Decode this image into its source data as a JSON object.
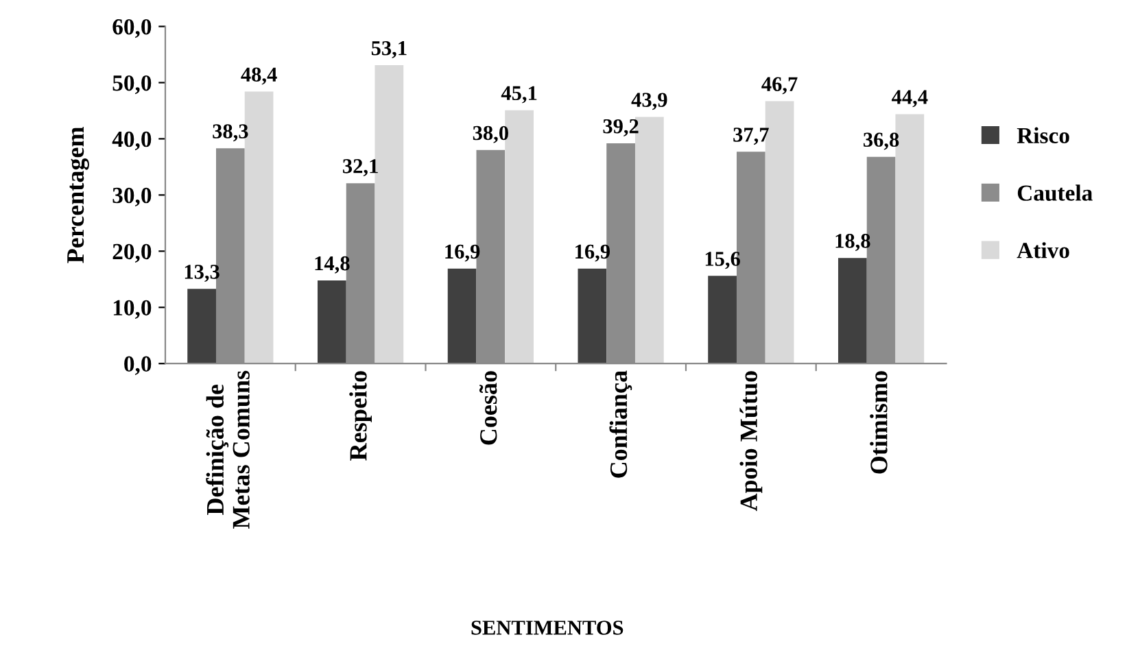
{
  "chart_data": {
    "type": "bar",
    "categories": [
      "Definição de\nMetas Comuns",
      "Respeito",
      "Coesão",
      "Confiança",
      "Apoio Mútuo",
      "Otimismo"
    ],
    "xlabel": "SENTIMENTOS",
    "ylabel": "Percentagem",
    "series": [
      {
        "name": "Risco",
        "color": "#404040",
        "values": [
          13.3,
          14.8,
          16.9,
          16.9,
          15.6,
          18.8
        ],
        "value_labels": [
          "13,3",
          "14,8",
          "16,9",
          "16,9",
          "15,6",
          "18,8"
        ]
      },
      {
        "name": "Cautela",
        "color": "#8c8c8c",
        "values": [
          38.3,
          32.1,
          38.0,
          39.2,
          37.7,
          36.8
        ],
        "value_labels": [
          "38,3",
          "32,1",
          "38,0",
          "39,2",
          "37,7",
          "36,8"
        ]
      },
      {
        "name": "Ativo",
        "color": "#d9d9d9",
        "values": [
          48.4,
          53.1,
          45.1,
          43.9,
          46.7,
          44.4
        ],
        "value_labels": [
          "48,4",
          "53,1",
          "45,1",
          "43,9",
          "46,7",
          "44,4"
        ]
      }
    ],
    "ylim": [
      0,
      60
    ],
    "yticks": [
      {
        "value": 0,
        "label": "0,0"
      },
      {
        "value": 10,
        "label": "10,0"
      },
      {
        "value": 20,
        "label": "20,0"
      },
      {
        "value": 30,
        "label": "30,0"
      },
      {
        "value": 40,
        "label": "40,0"
      },
      {
        "value": 50,
        "label": "50,0"
      },
      {
        "value": 60,
        "label": "60,0"
      }
    ],
    "legend": "right",
    "grid": false
  }
}
